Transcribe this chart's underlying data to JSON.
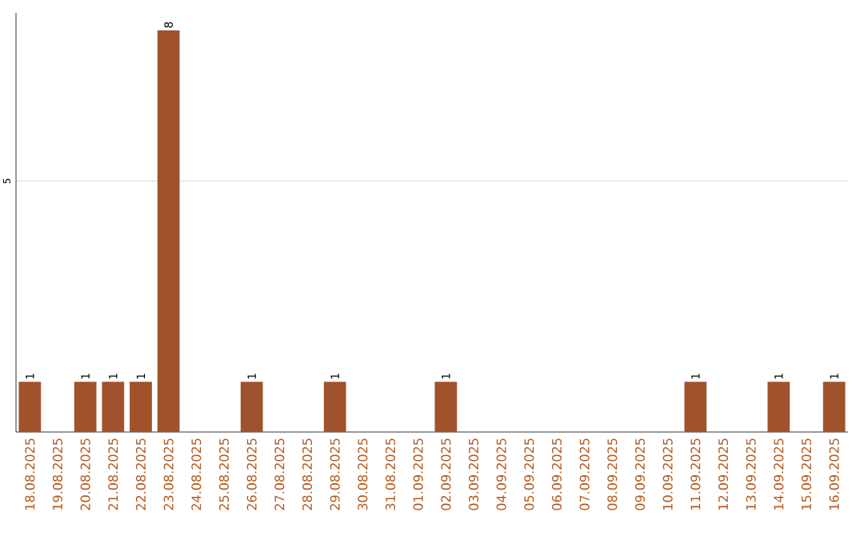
{
  "chart_data": {
    "type": "bar",
    "color": "#a0522d",
    "categories": [
      "18.08.2025",
      "19.08.2025",
      "20.08.2025",
      "21.08.2025",
      "22.08.2025",
      "23.08.2025",
      "24.08.2025",
      "25.08.2025",
      "26.08.2025",
      "27.08.2025",
      "28.08.2025",
      "29.08.2025",
      "30.08.2025",
      "31.08.2025",
      "01.09.2025",
      "02.09.2025",
      "03.09.2025",
      "04.09.2025",
      "05.09.2025",
      "06.09.2025",
      "07.09.2025",
      "08.09.2025",
      "09.09.2025",
      "10.09.2025",
      "11.09.2025",
      "12.09.2025",
      "13.09.2025",
      "14.09.2025",
      "15.09.2025",
      "16.09.2025"
    ],
    "values": [
      1,
      0,
      1,
      1,
      1,
      8,
      0,
      0,
      1,
      0,
      0,
      1,
      0,
      0,
      0,
      1,
      0,
      0,
      0,
      0,
      0,
      0,
      0,
      0,
      1,
      0,
      0,
      1,
      0,
      1
    ],
    "value_labels": [
      "1",
      null,
      "1",
      "1",
      "1",
      "8",
      null,
      null,
      "1",
      null,
      null,
      "1",
      null,
      null,
      null,
      "1",
      null,
      null,
      null,
      null,
      null,
      null,
      null,
      null,
      "1",
      null,
      null,
      "1",
      null,
      "1"
    ],
    "ylim": [
      0,
      8.35
    ],
    "yticks": [
      5
    ],
    "grid": "y"
  }
}
